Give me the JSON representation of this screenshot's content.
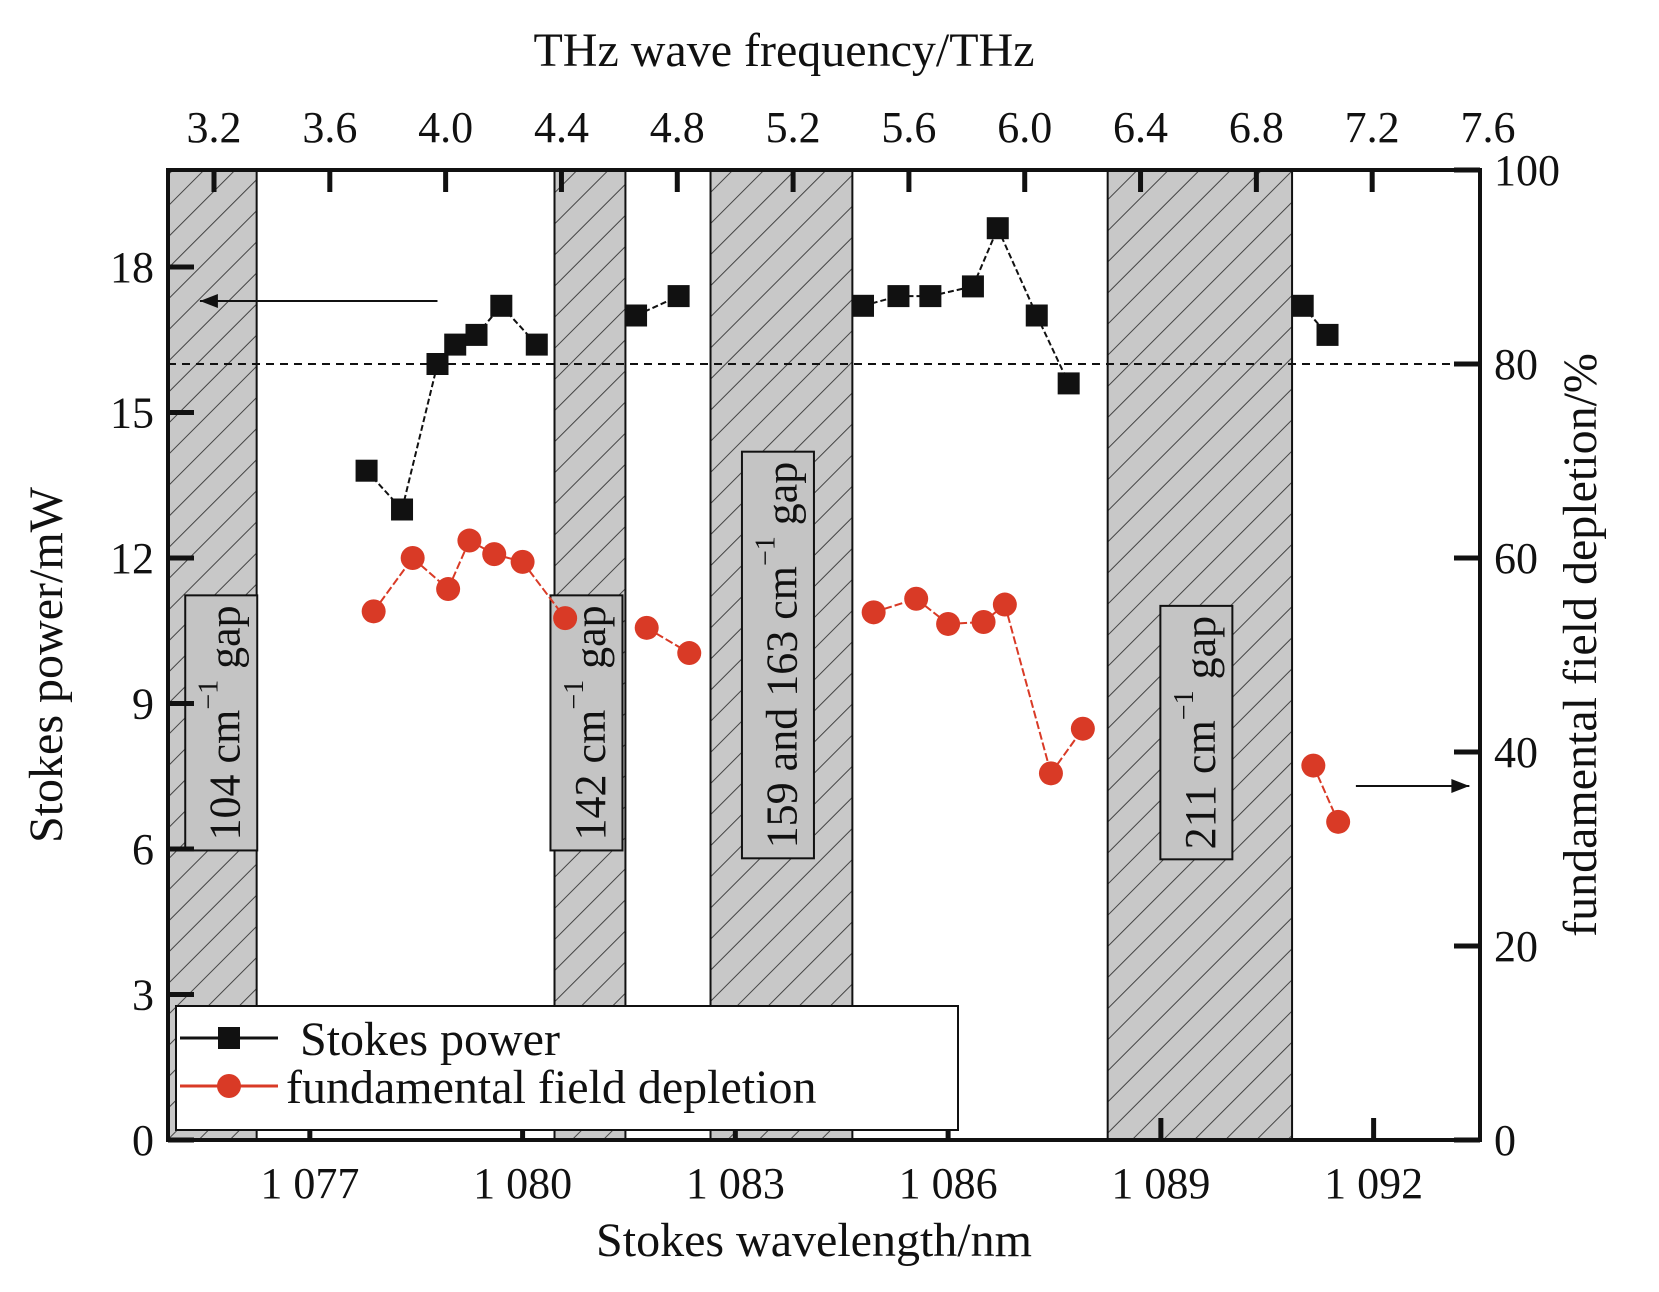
{
  "chart_data": {
    "type": "scatter",
    "title": "",
    "xlabel": "Stokes wavelength/nm",
    "x_top_label": "THz wave frequency/THz",
    "ylabel_left": "Stokes power/mW",
    "ylabel_right": "fundamental field depletion/%",
    "xlim": [
      1075.0,
      1093.5
    ],
    "ylim_left": [
      0,
      20
    ],
    "ylim_right": [
      0,
      100
    ],
    "xticks": [
      1077,
      1080,
      1083,
      1086,
      1089,
      1092
    ],
    "xtick_labels": [
      "1 077",
      "1 080",
      "1 083",
      "1 086",
      "1 089",
      "1 092"
    ],
    "top_ticks": [
      3.2,
      3.6,
      4.0,
      4.4,
      4.8,
      5.2,
      5.6,
      6.0,
      6.4,
      6.8,
      7.2,
      7.6
    ],
    "top_tick_labels": [
      "3.2",
      "3.6",
      "4.0",
      "4.4",
      "4.8",
      "5.2",
      "5.6",
      "6.0",
      "6.4",
      "6.8",
      "7.2",
      "7.6"
    ],
    "yticks_left": [
      0,
      3,
      6,
      9,
      12,
      15,
      18
    ],
    "yticks_right": [
      0,
      20,
      40,
      60,
      80,
      100
    ],
    "reference_line_left": 16,
    "gaps": [
      {
        "x0": 1075.0,
        "x1": 1076.25,
        "label": "104 cm",
        "sup": "−1",
        "suffix": " gap",
        "label_x": 1075.8,
        "label_y": 8.6
      },
      {
        "x0": 1080.45,
        "x1": 1081.45,
        "label": "142 cm",
        "sup": "−1",
        "suffix": " gap",
        "label_x": 1080.95,
        "label_y": 8.6
      },
      {
        "x0": 1082.65,
        "x1": 1084.65,
        "label": "159 and 163 cm",
        "sup": "−1",
        "suffix": " gap",
        "label_x": 1083.65,
        "label_y": 10.0
      },
      {
        "x0": 1088.25,
        "x1": 1090.85,
        "label": "211 cm",
        "sup": "−1",
        "suffix": " gap",
        "label_x": 1089.55,
        "label_y": 8.4
      }
    ],
    "series": [
      {
        "name": "Stokes power",
        "axis": "left",
        "color": "#111111",
        "marker": "square",
        "x": [
          1077.8,
          1078.3,
          1078.8,
          1079.05,
          1079.35,
          1079.7,
          1080.2,
          1081.6,
          1082.2,
          1084.8,
          1085.3,
          1085.75,
          1086.35,
          1086.7,
          1087.25,
          1087.7,
          1091.0,
          1091.35
        ],
        "values": [
          13.8,
          13.0,
          16.0,
          16.4,
          16.6,
          17.2,
          16.4,
          17.0,
          17.4,
          17.2,
          17.4,
          17.4,
          17.6,
          18.8,
          17.0,
          15.6,
          17.2,
          16.6
        ],
        "segments_break_after": [
          6,
          8,
          15
        ]
      },
      {
        "name": "fundamental field depletion",
        "axis": "right",
        "color": "#d93a26",
        "marker": "circle",
        "x": [
          1077.9,
          1078.45,
          1078.95,
          1079.25,
          1079.6,
          1080.0,
          1080.6,
          1081.75,
          1082.35,
          1084.95,
          1085.55,
          1086.0,
          1086.5,
          1086.8,
          1087.45,
          1087.9,
          1091.15,
          1091.5
        ],
        "values": [
          54.5,
          60.0,
          56.8,
          61.8,
          60.4,
          59.6,
          53.8,
          52.8,
          50.2,
          54.4,
          55.8,
          53.2,
          53.4,
          55.2,
          37.8,
          42.4,
          38.6,
          32.8
        ],
        "segments_break_after": [
          6,
          8,
          15
        ]
      }
    ],
    "legend": {
      "position": "bottom-left",
      "entries": [
        "Stokes power",
        "fundamental field depletion"
      ]
    }
  }
}
